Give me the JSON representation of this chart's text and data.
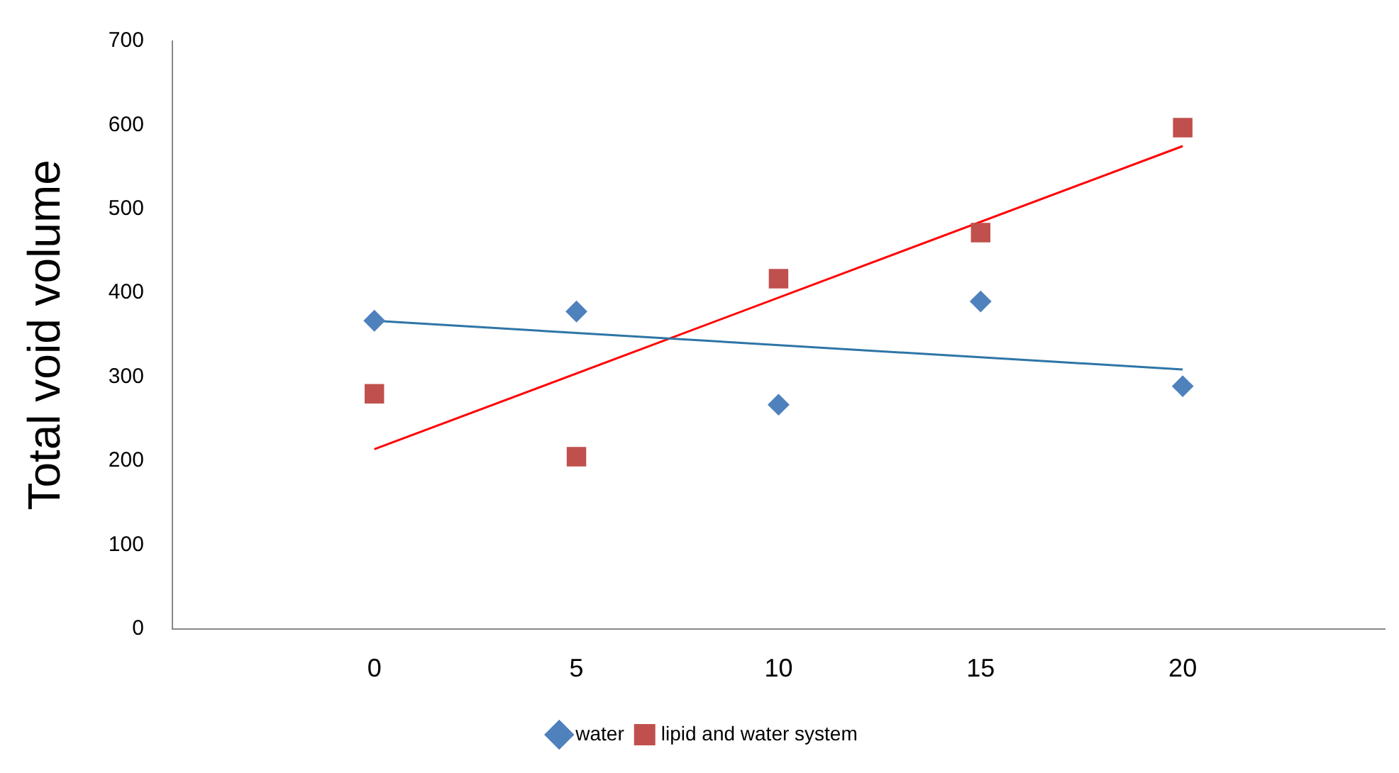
{
  "chart_data": {
    "type": "scatter",
    "ylabel": "Total void volume",
    "xlim": [
      -5,
      25
    ],
    "xticks": [
      0,
      5,
      10,
      15,
      20
    ],
    "ylim": [
      0,
      700
    ],
    "yticks": [
      0,
      100,
      200,
      300,
      400,
      500,
      600,
      700
    ],
    "grid": false,
    "legend": "bottom",
    "series": [
      {
        "name": "water",
        "color": "#4f81bd",
        "marker": "diamond",
        "x": [
          0,
          5,
          10,
          15,
          20
        ],
        "values": [
          367,
          378,
          267,
          390,
          289
        ]
      },
      {
        "name": "lipid and water system",
        "color": "#c0504d",
        "marker": "square",
        "x": [
          0,
          5,
          10,
          15,
          20
        ],
        "values": [
          280,
          205,
          417,
          472,
          597
        ]
      },
      {
        "type": "line",
        "color": "#2e75a6",
        "marker": "none",
        "x": [
          0,
          20
        ],
        "values": [
          367,
          309
        ]
      },
      {
        "type": "line",
        "color": "#ff0000",
        "marker": "none",
        "x": [
          0,
          20
        ],
        "values": [
          214,
          575
        ]
      }
    ]
  }
}
